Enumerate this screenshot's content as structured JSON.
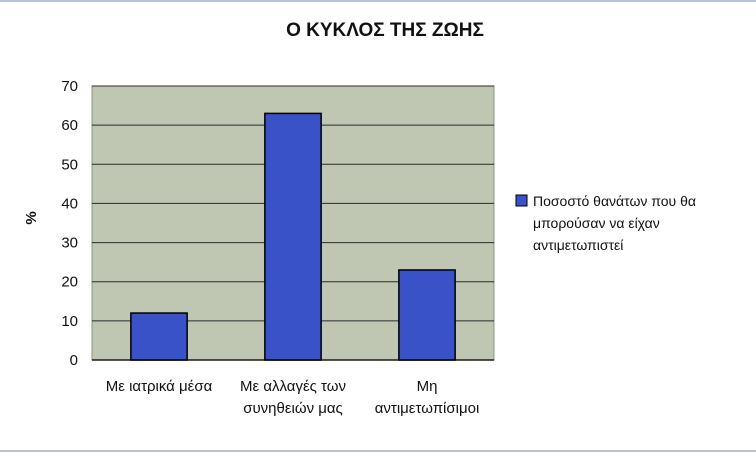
{
  "chart_data": {
    "type": "bar",
    "title": "Ο ΚΥΚΛΟΣ ΤΗΣ ΖΩΗΣ",
    "ylabel": "%",
    "xlabel": "",
    "categories": [
      [
        "Με ιατρικά μέσα"
      ],
      [
        "Με αλλαγές των",
        "συνηθειών μας"
      ],
      [
        "Μη",
        "αντιμετωπίσιμοι"
      ]
    ],
    "series": [
      {
        "name": "Ποσοστό θανάτων που θα μπορούσαν να είχαν αντιμετωπιστεί",
        "name_lines": [
          "Ποσοστό θανάτων που θα",
          "μπορούσαν να είχαν",
          "αντιμετωπιστεί"
        ],
        "values": [
          12,
          63,
          23
        ],
        "color": "#3a52c8"
      }
    ],
    "ylim": [
      0,
      70
    ],
    "yticks": [
      0,
      10,
      20,
      30,
      40,
      50,
      60,
      70
    ],
    "grid": true,
    "legend": "right",
    "plot_background": "#bfc7b3"
  }
}
